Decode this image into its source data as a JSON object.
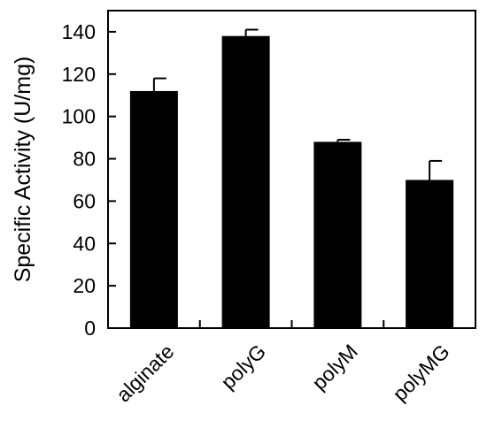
{
  "chart_data": {
    "type": "bar",
    "title": "",
    "xlabel": "",
    "ylabel": "Specific Activity (U/mg)",
    "categories": [
      "alginate",
      "polyG",
      "polyM",
      "polyMG"
    ],
    "values": [
      112,
      138,
      88,
      70
    ],
    "error": [
      6,
      3,
      1,
      9
    ],
    "ylim": [
      0,
      150
    ],
    "yticks": [
      0,
      20,
      40,
      60,
      80,
      100,
      120,
      140
    ],
    "grid": false,
    "legend": "none",
    "bar_color": "#000000"
  }
}
